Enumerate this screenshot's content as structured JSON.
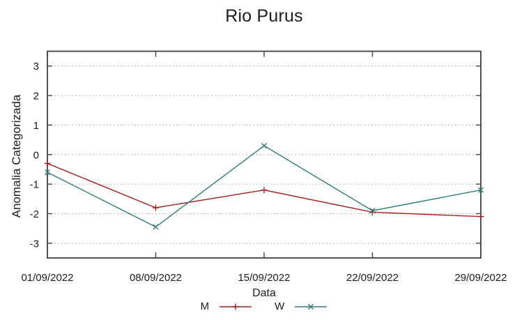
{
  "chart_data": {
    "type": "line",
    "title": "Rio Purus",
    "xlabel": "Data",
    "ylabel": "Anomalia Categorizada",
    "categories": [
      "01/09/2022",
      "08/09/2022",
      "15/09/2022",
      "22/09/2022",
      "29/09/2022"
    ],
    "series": [
      {
        "name": "M",
        "color": "#a82020",
        "marker": "plus",
        "values": [
          -0.3,
          -1.8,
          -1.2,
          -1.95,
          -2.1
        ]
      },
      {
        "name": "W",
        "color": "#2e7d7a",
        "marker": "cross",
        "values": [
          -0.6,
          -2.45,
          0.3,
          -1.9,
          -1.2
        ]
      }
    ],
    "yticks": [
      -3,
      -2,
      -1,
      0,
      1,
      2,
      3
    ],
    "ylim": [
      -3.5,
      3.5
    ],
    "grid": true,
    "legend_position": "bottom-center",
    "colors": {
      "axis": "#404040",
      "grid": "#b5b5b5",
      "text": "#1c1c1c",
      "background": "#ffffff"
    }
  }
}
